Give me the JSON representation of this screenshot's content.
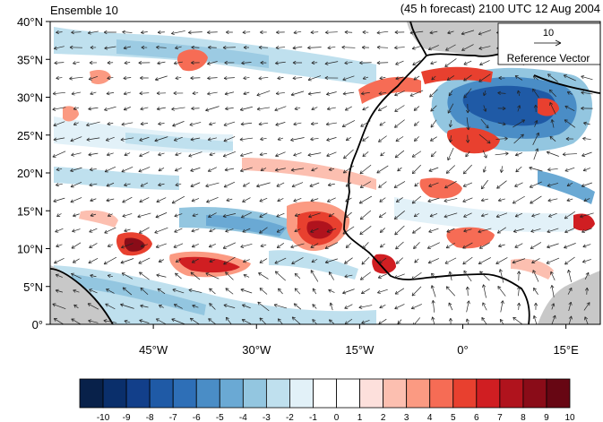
{
  "header": {
    "title_left": "Ensemble 10",
    "title_right": "(45 h forecast) 2100 UTC 12 Aug 2004"
  },
  "map": {
    "lon_range": [
      -60,
      20
    ],
    "lat_range": [
      0,
      40
    ],
    "lat_ticks": [
      {
        "value": 40,
        "label": "40°N"
      },
      {
        "value": 35,
        "label": "35°N"
      },
      {
        "value": 30,
        "label": "30°N"
      },
      {
        "value": 25,
        "label": "25°N"
      },
      {
        "value": 20,
        "label": "20°N"
      },
      {
        "value": 15,
        "label": "15°N"
      },
      {
        "value": 10,
        "label": "10°N"
      },
      {
        "value": 5,
        "label": "5°N"
      },
      {
        "value": 0,
        "label": "0°"
      }
    ],
    "lon_ticks": [
      {
        "value": -45,
        "label": "45°W"
      },
      {
        "value": -30,
        "label": "30°W"
      },
      {
        "value": -15,
        "label": "15°W"
      },
      {
        "value": 0,
        "label": "0°"
      },
      {
        "value": 15,
        "label": "15°E"
      }
    ],
    "land_mask_color": "#c8c8c8",
    "coast_color": "#000000",
    "vector_color": "#222222"
  },
  "reference_vector": {
    "magnitude": "10",
    "label": "Reference Vector"
  },
  "colorbar": {
    "labels": [
      "-10",
      "-9",
      "-8",
      "-7",
      "-6",
      "-5",
      "-4",
      "-3",
      "-2",
      "-1",
      "0",
      "1",
      "2",
      "3",
      "4",
      "5",
      "6",
      "7",
      "8",
      "9",
      "10"
    ],
    "colors": [
      "#08214a",
      "#0a2f6b",
      "#123f8a",
      "#1f5aa6",
      "#2e6fb7",
      "#4a8dc6",
      "#6aa9d4",
      "#93c6e0",
      "#bfe0ee",
      "#e2f1f8",
      "#ffffff",
      "#ffffff",
      "#fde0dc",
      "#fcbfb0",
      "#fb9a82",
      "#f66c55",
      "#e8402f",
      "#d01e22",
      "#b0131d",
      "#8a0c18",
      "#670613"
    ]
  }
}
